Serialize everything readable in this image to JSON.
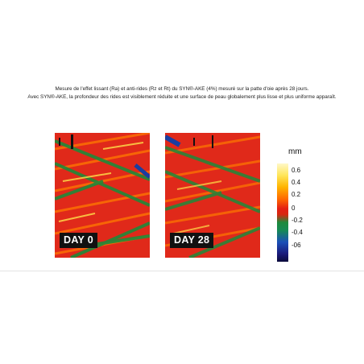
{
  "caption": {
    "line1": "Mesure de l'effet lissant (Ra) et anti-rides (Rz et Rt) du SYN®-AKE (4%) mesuré sur la patte d'oie après 28 jours.",
    "line2": "Avec SYN®-AKE, la profondeur des rides est visiblement réduite et une surface de peau globalement plus lisse et plus uniforme apparaît."
  },
  "panels": [
    {
      "label": "DAY 0"
    },
    {
      "label": "DAY 28"
    }
  ],
  "scale": {
    "unit": "mm",
    "ticks": [
      "0.6",
      "0.4",
      "0.2",
      "0",
      "-0.2",
      "-0.4",
      "-06"
    ]
  },
  "colors": {
    "red": "#e0291a",
    "orange": "#ff7a00",
    "yellow": "#ffe14a",
    "green": "#1f8a3a",
    "blue": "#1a3ea0",
    "label_bg": "#111111"
  }
}
